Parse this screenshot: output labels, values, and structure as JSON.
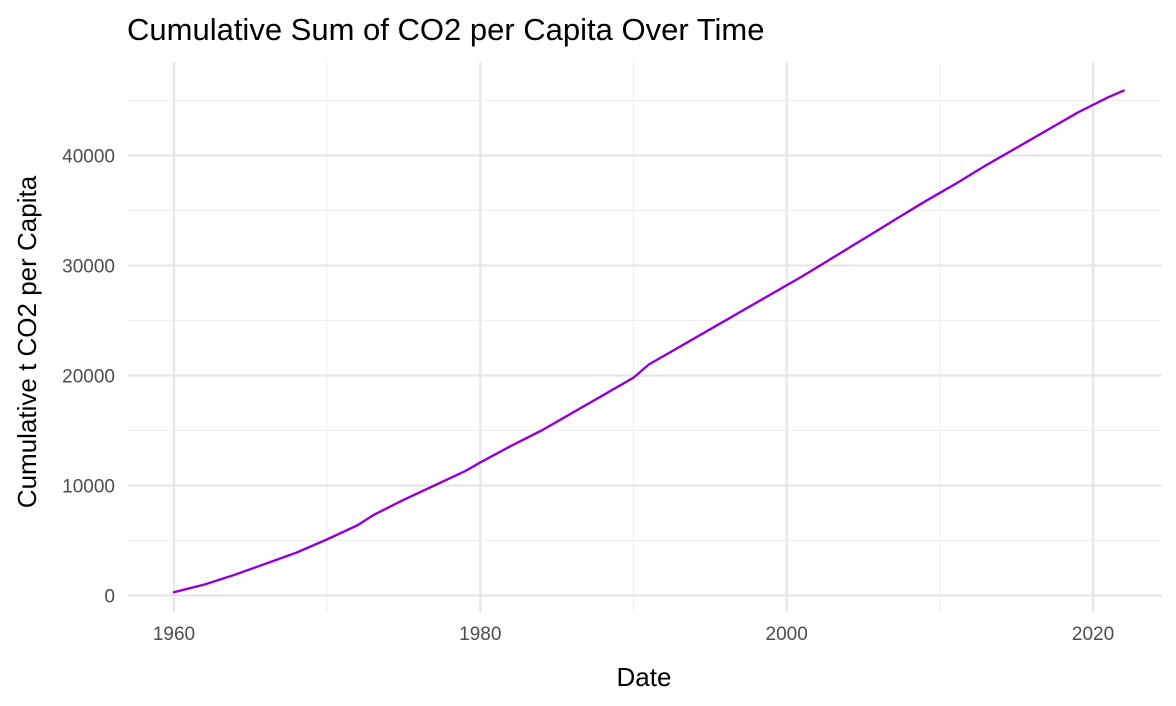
{
  "chart_data": {
    "type": "line",
    "title": "Cumulative Sum of CO2 per Capita Over Time",
    "xlabel": "Date",
    "ylabel": "Cumulative t CO2 per Capita",
    "xlim": [
      1957,
      2024.5
    ],
    "ylim": [
      -1500,
      48500
    ],
    "x_ticks": [
      1960,
      1980,
      2000,
      2020
    ],
    "x_tick_labels": [
      "1960",
      "1980",
      "2000",
      "2020"
    ],
    "x_minor_ticks": [
      1970,
      1990,
      2010
    ],
    "y_ticks": [
      0,
      10000,
      20000,
      30000,
      40000
    ],
    "y_tick_labels": [
      "0",
      "10000",
      "20000",
      "30000",
      "40000"
    ],
    "y_minor_ticks": [
      5000,
      15000,
      25000,
      35000,
      45000
    ],
    "grid": true,
    "legend": "none",
    "series": [
      {
        "color": "#9400d3",
        "x": [
          1960,
          1962,
          1964,
          1966,
          1968,
          1970,
          1972,
          1973,
          1975,
          1977,
          1979,
          1980,
          1982,
          1984,
          1986,
          1988,
          1990,
          1991,
          1993,
          1995,
          1997,
          1999,
          2001,
          2003,
          2005,
          2007,
          2009,
          2011,
          2013,
          2015,
          2017,
          2019,
          2021,
          2022
        ],
        "y": [
          300,
          1000,
          1900,
          2900,
          3900,
          5100,
          6400,
          7300,
          8700,
          10000,
          11300,
          12100,
          13600,
          15000,
          16600,
          18200,
          19800,
          21000,
          22600,
          24200,
          25800,
          27400,
          29000,
          30700,
          32400,
          34100,
          35800,
          37400,
          39100,
          40700,
          42300,
          43900,
          45300,
          45900
        ]
      }
    ]
  }
}
